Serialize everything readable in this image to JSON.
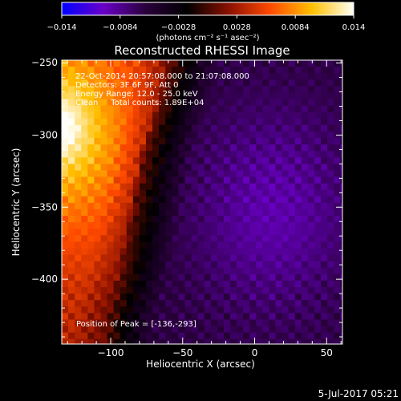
{
  "chart_data": {
    "type": "heatmap",
    "title": "Reconstructed RHESSI Image",
    "xlabel": "Heliocentric X (arcsec)",
    "ylabel": "Heliocentric Y (arcsec)",
    "xlim": [
      -134,
      61
    ],
    "ylim": [
      -445,
      -248
    ],
    "x_ticks": [
      -100,
      -50,
      0,
      50
    ],
    "x_tick_labels": [
      "−100",
      "−50",
      "0",
      "50"
    ],
    "y_ticks": [
      -300,
      -350,
      -400
    ],
    "y_tick_labels": [
      "−300",
      "−350",
      "−400"
    ],
    "y_top_tick_label": "−250",
    "colorbar": {
      "range": [
        -0.014,
        0.014
      ],
      "ticks": [
        -0.014,
        -0.0084,
        -0.0028,
        0.0028,
        0.0084,
        0.014
      ],
      "tick_labels": [
        "−0.014",
        "−0.0084",
        "−0.0028",
        "0.0028",
        "0.0084",
        "0.014"
      ],
      "units_label": "(photons cm⁻² s⁻¹ asec⁻²)",
      "colormap": [
        "#0000ff",
        "#6a00c8",
        "#2a003c",
        "#000000",
        "#8a1000",
        "#ff4a00",
        "#ffc000",
        "#fffff8"
      ]
    },
    "annotations": [
      "22-Oct-2014 20:57:08.000 to 21:07:08.000",
      "Detectors: 3F 6F 9F, Att 0",
      "Energy Range: 12.0 - 25.0 keV",
      "Clean     Total counts: 1.89E+04"
    ],
    "peak_label": "Position of Peak = [-136,-293]",
    "peak_position": [
      -136,
      -293
    ],
    "source_edge_x": [
      -64,
      -68,
      -74,
      -80,
      -84,
      -88,
      -92,
      -96,
      -102,
      -108
    ],
    "source_edge_y": [
      -250,
      -270,
      -290,
      -310,
      -330,
      -350,
      -370,
      -390,
      -410,
      -430
    ],
    "background_level": -0.006
  },
  "footer_date": "5-Jul-2017 05:21"
}
